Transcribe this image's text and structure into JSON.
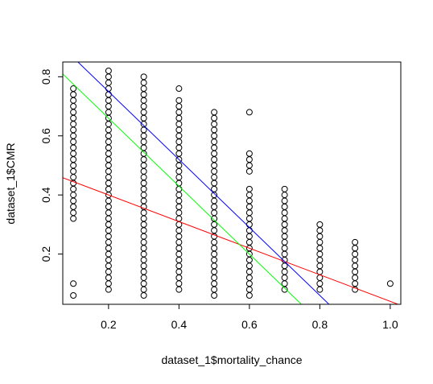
{
  "chart_data": {
    "type": "scatter",
    "title": "",
    "xlabel": "dataset_1$mortality_chance",
    "ylabel": "dataset_1$CMR",
    "xlim": [
      0.07,
      1.03
    ],
    "ylim": [
      0.03,
      0.85
    ],
    "x_ticks": [
      "0.2",
      "0.4",
      "0.6",
      "0.8",
      "1.0"
    ],
    "y_ticks": [
      "0.2",
      "0.4",
      "0.6",
      "0.8"
    ],
    "grid": false,
    "legend": "none",
    "point_style": "open circle",
    "columns": [
      {
        "x": 0.1,
        "y_min": 0.32,
        "y_max": 0.76,
        "step": 0.02,
        "outliers": [
          0.1,
          0.06
        ]
      },
      {
        "x": 0.2,
        "y_min": 0.08,
        "y_max": 0.82,
        "step": 0.02,
        "outliers": []
      },
      {
        "x": 0.3,
        "y_min": 0.06,
        "y_max": 0.8,
        "step": 0.02,
        "outliers": []
      },
      {
        "x": 0.4,
        "y_min": 0.08,
        "y_max": 0.72,
        "step": 0.02,
        "outliers": [
          0.76
        ]
      },
      {
        "x": 0.5,
        "y_min": 0.06,
        "y_max": 0.68,
        "step": 0.02,
        "outliers": []
      },
      {
        "x": 0.6,
        "y_min": 0.06,
        "y_max": 0.42,
        "step": 0.02,
        "outliers": [
          0.68,
          0.54,
          0.52,
          0.5,
          0.48
        ]
      },
      {
        "x": 0.7,
        "y_min": 0.08,
        "y_max": 0.42,
        "step": 0.02,
        "outliers": []
      },
      {
        "x": 0.8,
        "y_min": 0.08,
        "y_max": 0.3,
        "step": 0.02,
        "outliers": []
      },
      {
        "x": 0.9,
        "y_min": 0.08,
        "y_max": 0.24,
        "step": 0.02,
        "outliers": []
      },
      {
        "x": 1.0,
        "y_min": 0.1,
        "y_max": 0.1,
        "step": 0.02,
        "outliers": []
      }
    ],
    "fit_lines": [
      {
        "color": "#ff0000",
        "intercept": 0.49,
        "slope": -0.45
      },
      {
        "color": "#00ff00",
        "intercept": 0.89,
        "slope": -1.15
      },
      {
        "color": "#0000ff",
        "intercept": 0.98,
        "slope": -1.15
      }
    ]
  }
}
